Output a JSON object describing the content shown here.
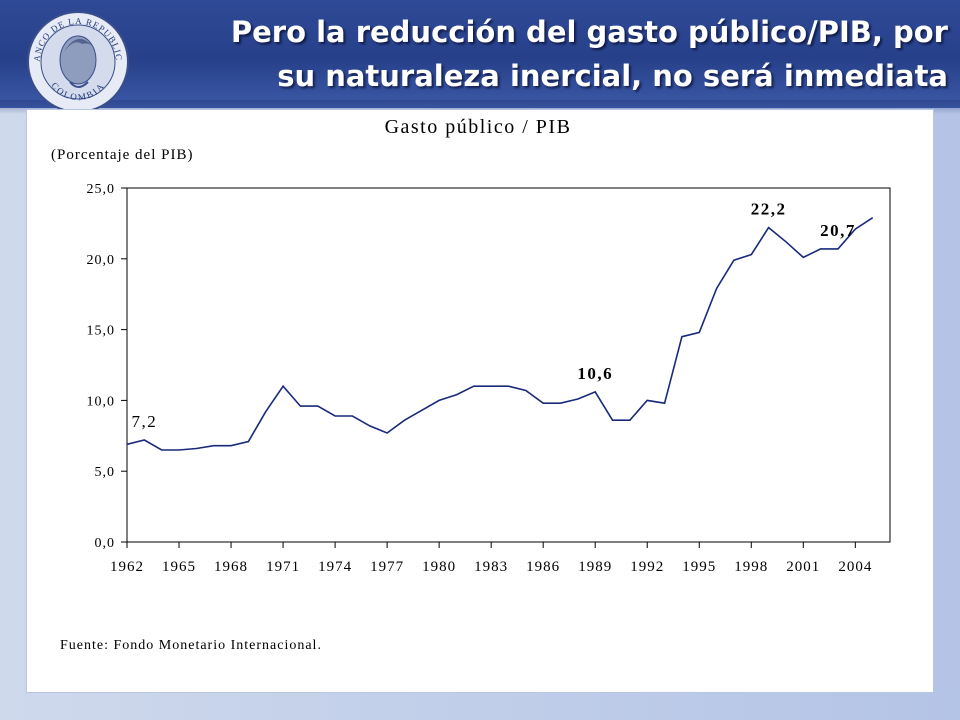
{
  "slide": {
    "title_line1": "Pero la reducción del gasto público/PIB, por",
    "title_line2": "su naturaleza inercial, no será inmediata",
    "logo_text_top": "BANCO DE LA REPUBLICA",
    "logo_text_bottom": "COLOMBIA",
    "colors": {
      "header": "#2a4590",
      "background": "#c3d0ea",
      "line": "#1a2a7a"
    }
  },
  "chart_data": {
    "type": "line",
    "title": "Gasto público / PIB",
    "units": "(Porcentaje del PIB)",
    "source": "Fuente: Fondo Monetario Internacional.",
    "x_ticks": [
      "1962",
      "1965",
      "1968",
      "1971",
      "1974",
      "1977",
      "1980",
      "1983",
      "1986",
      "1989",
      "1992",
      "1995",
      "1998",
      "2001",
      "2004"
    ],
    "y_ticks": [
      "0,0",
      "5,0",
      "10,0",
      "15,0",
      "20,0",
      "25,0"
    ],
    "ylim": [
      0,
      25
    ],
    "xlim": [
      1962,
      2006
    ],
    "grid": false,
    "series": [
      {
        "x": [
          1962,
          1963,
          1964,
          1965,
          1966,
          1967,
          1968,
          1969,
          1970,
          1971,
          1972,
          1973,
          1974,
          1975,
          1976,
          1977,
          1978,
          1979,
          1980,
          1981,
          1982,
          1983,
          1984,
          1985,
          1986,
          1987,
          1988,
          1989,
          1990,
          1991,
          1992,
          1993,
          1994,
          1995,
          1996,
          1997,
          1998,
          1999,
          2000,
          2001,
          2002,
          2003,
          2004,
          2005
        ],
        "values": [
          6.9,
          7.2,
          6.5,
          6.5,
          6.6,
          6.8,
          6.8,
          7.1,
          9.2,
          11.0,
          9.6,
          9.6,
          8.9,
          8.9,
          8.2,
          7.7,
          8.6,
          9.3,
          10.0,
          10.4,
          11.0,
          11.0,
          11.0,
          10.7,
          9.8,
          9.8,
          10.1,
          10.6,
          8.6,
          8.6,
          10.0,
          9.8,
          14.5,
          14.8,
          17.9,
          19.9,
          20.3,
          22.2,
          21.2,
          20.1,
          20.7,
          20.7,
          22.1,
          22.9
        ]
      }
    ],
    "annotations": [
      {
        "text": "7,2",
        "x": 1963,
        "y": 7.2
      },
      {
        "text": "10,6",
        "x": 1989,
        "y": 10.6
      },
      {
        "text": "22,2",
        "x": 1999,
        "y": 22.2
      },
      {
        "text": "20,7",
        "x": 2003,
        "y": 20.7
      }
    ]
  }
}
